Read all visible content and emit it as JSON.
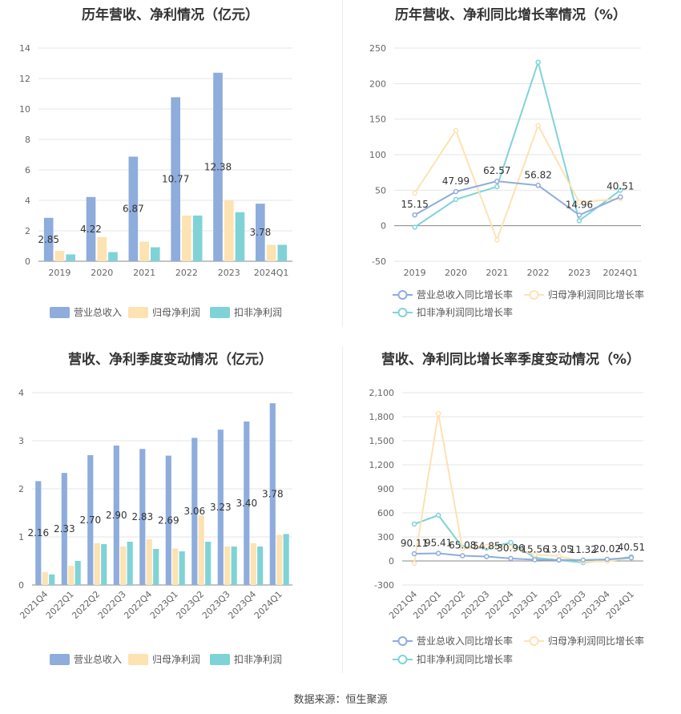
{
  "colors": {
    "revenue": "#8eacdc",
    "parent_profit": "#fde2b2",
    "deducted_profit": "#7fd3d7"
  },
  "source": "数据来源：恒生聚源",
  "chart_data": [
    {
      "type": "bar",
      "title": "历年营收、净利情况（亿元）",
      "categories": [
        "2019",
        "2020",
        "2021",
        "2022",
        "2023",
        "2024Q1"
      ],
      "ylim": [
        0,
        14
      ],
      "yticks": [
        "0",
        "2",
        "4",
        "6",
        "8",
        "10",
        "12",
        "14"
      ],
      "series": [
        {
          "name": "营业总收入",
          "values": [
            2.85,
            4.22,
            6.87,
            10.77,
            12.38,
            3.78
          ],
          "labels": [
            "2.85",
            "4.22",
            "6.87",
            "10.77",
            "12.38",
            "3.78"
          ]
        },
        {
          "name": "归母净利润",
          "values": [
            0.68,
            1.58,
            1.28,
            3.0,
            4.0,
            1.08
          ]
        },
        {
          "name": "扣非净利润",
          "values": [
            0.45,
            0.6,
            0.92,
            3.0,
            3.22,
            1.08
          ]
        }
      ],
      "legend": "bottom"
    },
    {
      "type": "line",
      "title": "历年营收、净利同比增长率情况（%）",
      "categories": [
        "2019",
        "2020",
        "2021",
        "2022",
        "2023",
        "2024Q1"
      ],
      "ylim": [
        -50,
        250
      ],
      "yticks": [
        "-50",
        "0",
        "50",
        "100",
        "150",
        "200",
        "250"
      ],
      "series": [
        {
          "name": "营业总收入同比增长率",
          "values": [
            15.15,
            47.99,
            62.57,
            56.82,
            14.96,
            40.51
          ],
          "labels": [
            "15.15",
            "47.99",
            "62.57",
            "56.82",
            "14.96",
            "40.51"
          ]
        },
        {
          "name": "归母净利润同比增长率",
          "values": [
            46,
            134,
            -20,
            141,
            33,
            38
          ]
        },
        {
          "name": "扣非净利润同比增长率",
          "values": [
            -2,
            37,
            55,
            230,
            7,
            50
          ]
        }
      ],
      "legend": "bottom"
    },
    {
      "type": "bar",
      "title": "营收、净利季度变动情况（亿元）",
      "categories": [
        "2021Q4",
        "2022Q1",
        "2022Q2",
        "2022Q3",
        "2022Q4",
        "2023Q1",
        "2023Q2",
        "2023Q3",
        "2023Q4",
        "2024Q1"
      ],
      "ylim": [
        0,
        4
      ],
      "yticks": [
        "0",
        "1",
        "2",
        "3",
        "4"
      ],
      "series": [
        {
          "name": "营业总收入",
          "values": [
            2.16,
            2.33,
            2.7,
            2.9,
            2.83,
            2.69,
            3.06,
            3.23,
            3.4,
            3.78
          ],
          "labels": [
            "2.16",
            "2.33",
            "2.70",
            "2.90",
            "2.83",
            "2.69",
            "3.06",
            "3.23",
            "3.40",
            "3.78"
          ]
        },
        {
          "name": "归母净利润",
          "values": [
            0.27,
            0.4,
            0.87,
            0.8,
            0.95,
            0.76,
            1.45,
            0.8,
            0.87,
            1.04
          ]
        },
        {
          "name": "扣非净利润",
          "values": [
            0.22,
            0.5,
            0.85,
            0.9,
            0.75,
            0.7,
            0.9,
            0.8,
            0.8,
            1.06
          ]
        }
      ],
      "legend": "bottom"
    },
    {
      "type": "line",
      "title": "营收、净利同比增长率季度变动情况（%）",
      "categories": [
        "2021Q4",
        "2022Q1",
        "2022Q2",
        "2022Q3",
        "2022Q4",
        "2023Q1",
        "2023Q2",
        "2023Q3",
        "2023Q4",
        "2024Q1"
      ],
      "ylim": [
        -300,
        2100
      ],
      "yticks": [
        "-300",
        "0",
        "300",
        "600",
        "900",
        "1,200",
        "1,500",
        "1,800",
        "2,100"
      ],
      "series": [
        {
          "name": "营业总收入同比增长率",
          "values": [
            90.11,
            95.41,
            65.08,
            54.85,
            30.96,
            15.56,
            13.05,
            11.32,
            20.02,
            40.51
          ],
          "labels": [
            "90.11",
            "95.41",
            "65.08",
            "54.85",
            "30.96",
            "15.56",
            "13.05",
            "11.32",
            "20.02",
            "40.51"
          ]
        },
        {
          "name": "归母净利润同比增长率",
          "values": [
            -30,
            1840,
            150,
            180,
            170,
            80,
            60,
            -10,
            -5,
            38
          ]
        },
        {
          "name": "扣非净利润同比增长率",
          "values": [
            460,
            570,
            170,
            160,
            230,
            40,
            10,
            -20,
            10,
            50
          ]
        }
      ],
      "legend": "bottom"
    }
  ]
}
